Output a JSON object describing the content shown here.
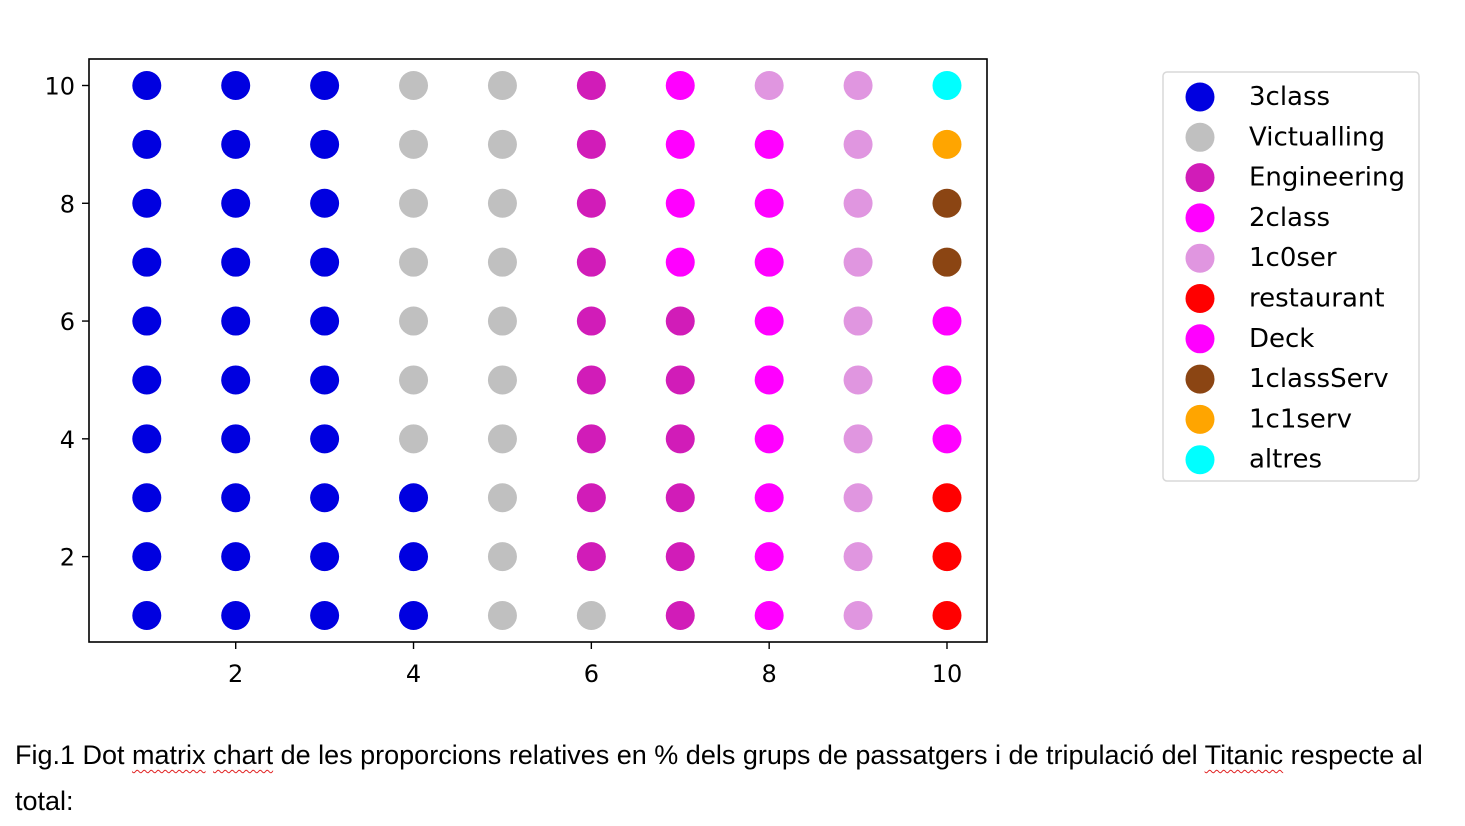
{
  "chart_data": {
    "type": "scatter",
    "xlim": [
      0.35,
      10.45
    ],
    "ylim": [
      0.55,
      10.45
    ],
    "xticks": [
      "2",
      "4",
      "6",
      "8",
      "10"
    ],
    "yticks": [
      "2",
      "4",
      "6",
      "8",
      "10"
    ],
    "grid": false,
    "legend_placement": "outside-right",
    "colors": {
      "3class": "#0000e0",
      "Victualling": "#c0c0c0",
      "Engineering": "#d11cb8",
      "2class": "#ff00ff",
      "1c0ser": "#e096e0",
      "restaurant": "#ff0000",
      "Deck": "#ff00ff",
      "1classServ": "#8b4513",
      "1c1serv": "#ffa500",
      "altres": "#00ffff"
    },
    "series": [
      {
        "name": "3class",
        "points": [
          [
            1,
            1
          ],
          [
            1,
            2
          ],
          [
            1,
            3
          ],
          [
            1,
            4
          ],
          [
            1,
            5
          ],
          [
            1,
            6
          ],
          [
            1,
            7
          ],
          [
            1,
            8
          ],
          [
            1,
            9
          ],
          [
            1,
            10
          ],
          [
            2,
            1
          ],
          [
            2,
            2
          ],
          [
            2,
            3
          ],
          [
            2,
            4
          ],
          [
            2,
            5
          ],
          [
            2,
            6
          ],
          [
            2,
            7
          ],
          [
            2,
            8
          ],
          [
            2,
            9
          ],
          [
            2,
            10
          ],
          [
            3,
            1
          ],
          [
            3,
            2
          ],
          [
            3,
            3
          ],
          [
            3,
            4
          ],
          [
            3,
            5
          ],
          [
            3,
            6
          ],
          [
            3,
            7
          ],
          [
            3,
            8
          ],
          [
            3,
            9
          ],
          [
            3,
            10
          ],
          [
            4,
            1
          ],
          [
            4,
            2
          ],
          [
            4,
            3
          ]
        ]
      },
      {
        "name": "Victualling",
        "points": [
          [
            4,
            4
          ],
          [
            4,
            5
          ],
          [
            4,
            6
          ],
          [
            4,
            7
          ],
          [
            4,
            8
          ],
          [
            4,
            9
          ],
          [
            4,
            10
          ],
          [
            5,
            1
          ],
          [
            5,
            2
          ],
          [
            5,
            3
          ],
          [
            5,
            4
          ],
          [
            5,
            5
          ],
          [
            5,
            6
          ],
          [
            5,
            7
          ],
          [
            5,
            8
          ],
          [
            5,
            9
          ],
          [
            5,
            10
          ],
          [
            6,
            1
          ]
        ]
      },
      {
        "name": "Engineering",
        "points": [
          [
            6,
            2
          ],
          [
            6,
            3
          ],
          [
            6,
            4
          ],
          [
            6,
            5
          ],
          [
            6,
            6
          ],
          [
            6,
            7
          ],
          [
            6,
            8
          ],
          [
            6,
            9
          ],
          [
            6,
            10
          ],
          [
            7,
            1
          ],
          [
            7,
            2
          ],
          [
            7,
            3
          ],
          [
            7,
            4
          ],
          [
            7,
            5
          ],
          [
            7,
            6
          ]
        ]
      },
      {
        "name": "2class",
        "points": [
          [
            7,
            7
          ],
          [
            7,
            8
          ],
          [
            7,
            9
          ],
          [
            7,
            10
          ],
          [
            8,
            1
          ],
          [
            8,
            2
          ],
          [
            8,
            3
          ],
          [
            8,
            4
          ],
          [
            8,
            5
          ],
          [
            8,
            6
          ],
          [
            8,
            7
          ],
          [
            8,
            8
          ],
          [
            8,
            9
          ]
        ]
      },
      {
        "name": "1c0ser",
        "points": [
          [
            8,
            10
          ],
          [
            9,
            1
          ],
          [
            9,
            2
          ],
          [
            9,
            3
          ],
          [
            9,
            4
          ],
          [
            9,
            5
          ],
          [
            9,
            6
          ],
          [
            9,
            7
          ],
          [
            9,
            8
          ],
          [
            9,
            9
          ],
          [
            9,
            10
          ]
        ]
      },
      {
        "name": "restaurant",
        "points": [
          [
            10,
            1
          ],
          [
            10,
            2
          ],
          [
            10,
            3
          ]
        ]
      },
      {
        "name": "Deck",
        "points": [
          [
            10,
            4
          ],
          [
            10,
            5
          ],
          [
            10,
            6
          ]
        ]
      },
      {
        "name": "1classServ",
        "points": [
          [
            10,
            7
          ],
          [
            10,
            8
          ]
        ]
      },
      {
        "name": "1c1serv",
        "points": [
          [
            10,
            9
          ]
        ]
      },
      {
        "name": "altres",
        "points": [
          [
            10,
            10
          ]
        ]
      }
    ],
    "legend": [
      "3class",
      "Victualling",
      "Engineering",
      "2class",
      "1c0ser",
      "restaurant",
      "Deck",
      "1classServ",
      "1c1serv",
      "altres"
    ]
  },
  "caption": {
    "part1": "Fig.1 Dot ",
    "word_matrix": "matrix",
    "space1": " ",
    "word_chart": "chart",
    "part2": " de les proporcions relatives en % dels grups de passatgers i de tripulació del ",
    "word_titanic": "Titanic",
    "part3": " respecte al total:"
  }
}
